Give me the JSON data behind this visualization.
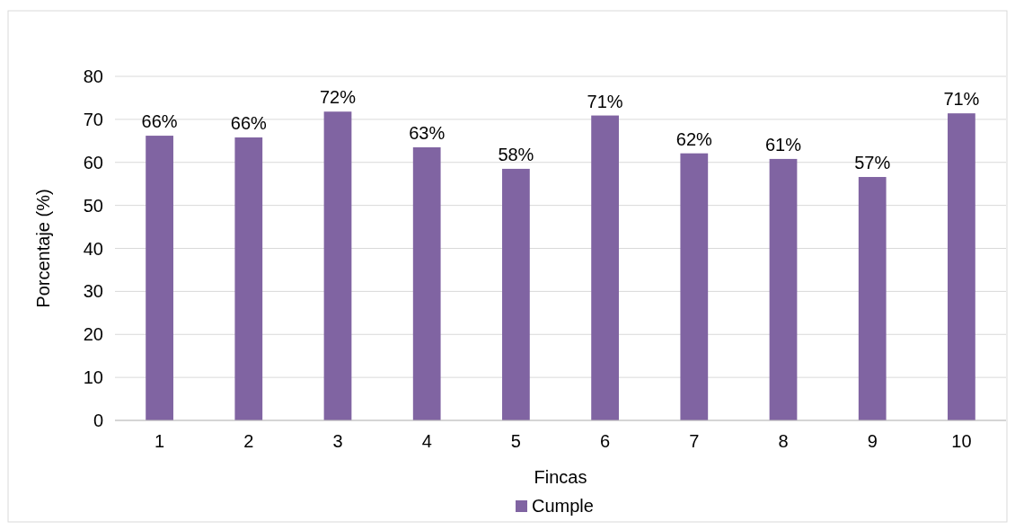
{
  "chart_data": {
    "type": "bar",
    "xlabel": "Fincas",
    "ylabel": "Porcentaje (%)",
    "categories": [
      "1",
      "2",
      "3",
      "4",
      "5",
      "6",
      "7",
      "8",
      "9",
      "10"
    ],
    "series": [
      {
        "name": "Cumple",
        "color": "#8064a2",
        "values": [
          66.2,
          65.8,
          71.8,
          63.5,
          58.5,
          70.9,
          62.1,
          60.8,
          56.6,
          71.4
        ],
        "value_labels": [
          "66%",
          "66%",
          "72%",
          "63%",
          "58%",
          "71%",
          "62%",
          "61%",
          "57%",
          "71%"
        ]
      }
    ],
    "ylim": [
      0,
      80
    ],
    "yticks": [
      0,
      10,
      20,
      30,
      40,
      50,
      60,
      70,
      80
    ],
    "grid": "y",
    "legend": "bottom"
  }
}
